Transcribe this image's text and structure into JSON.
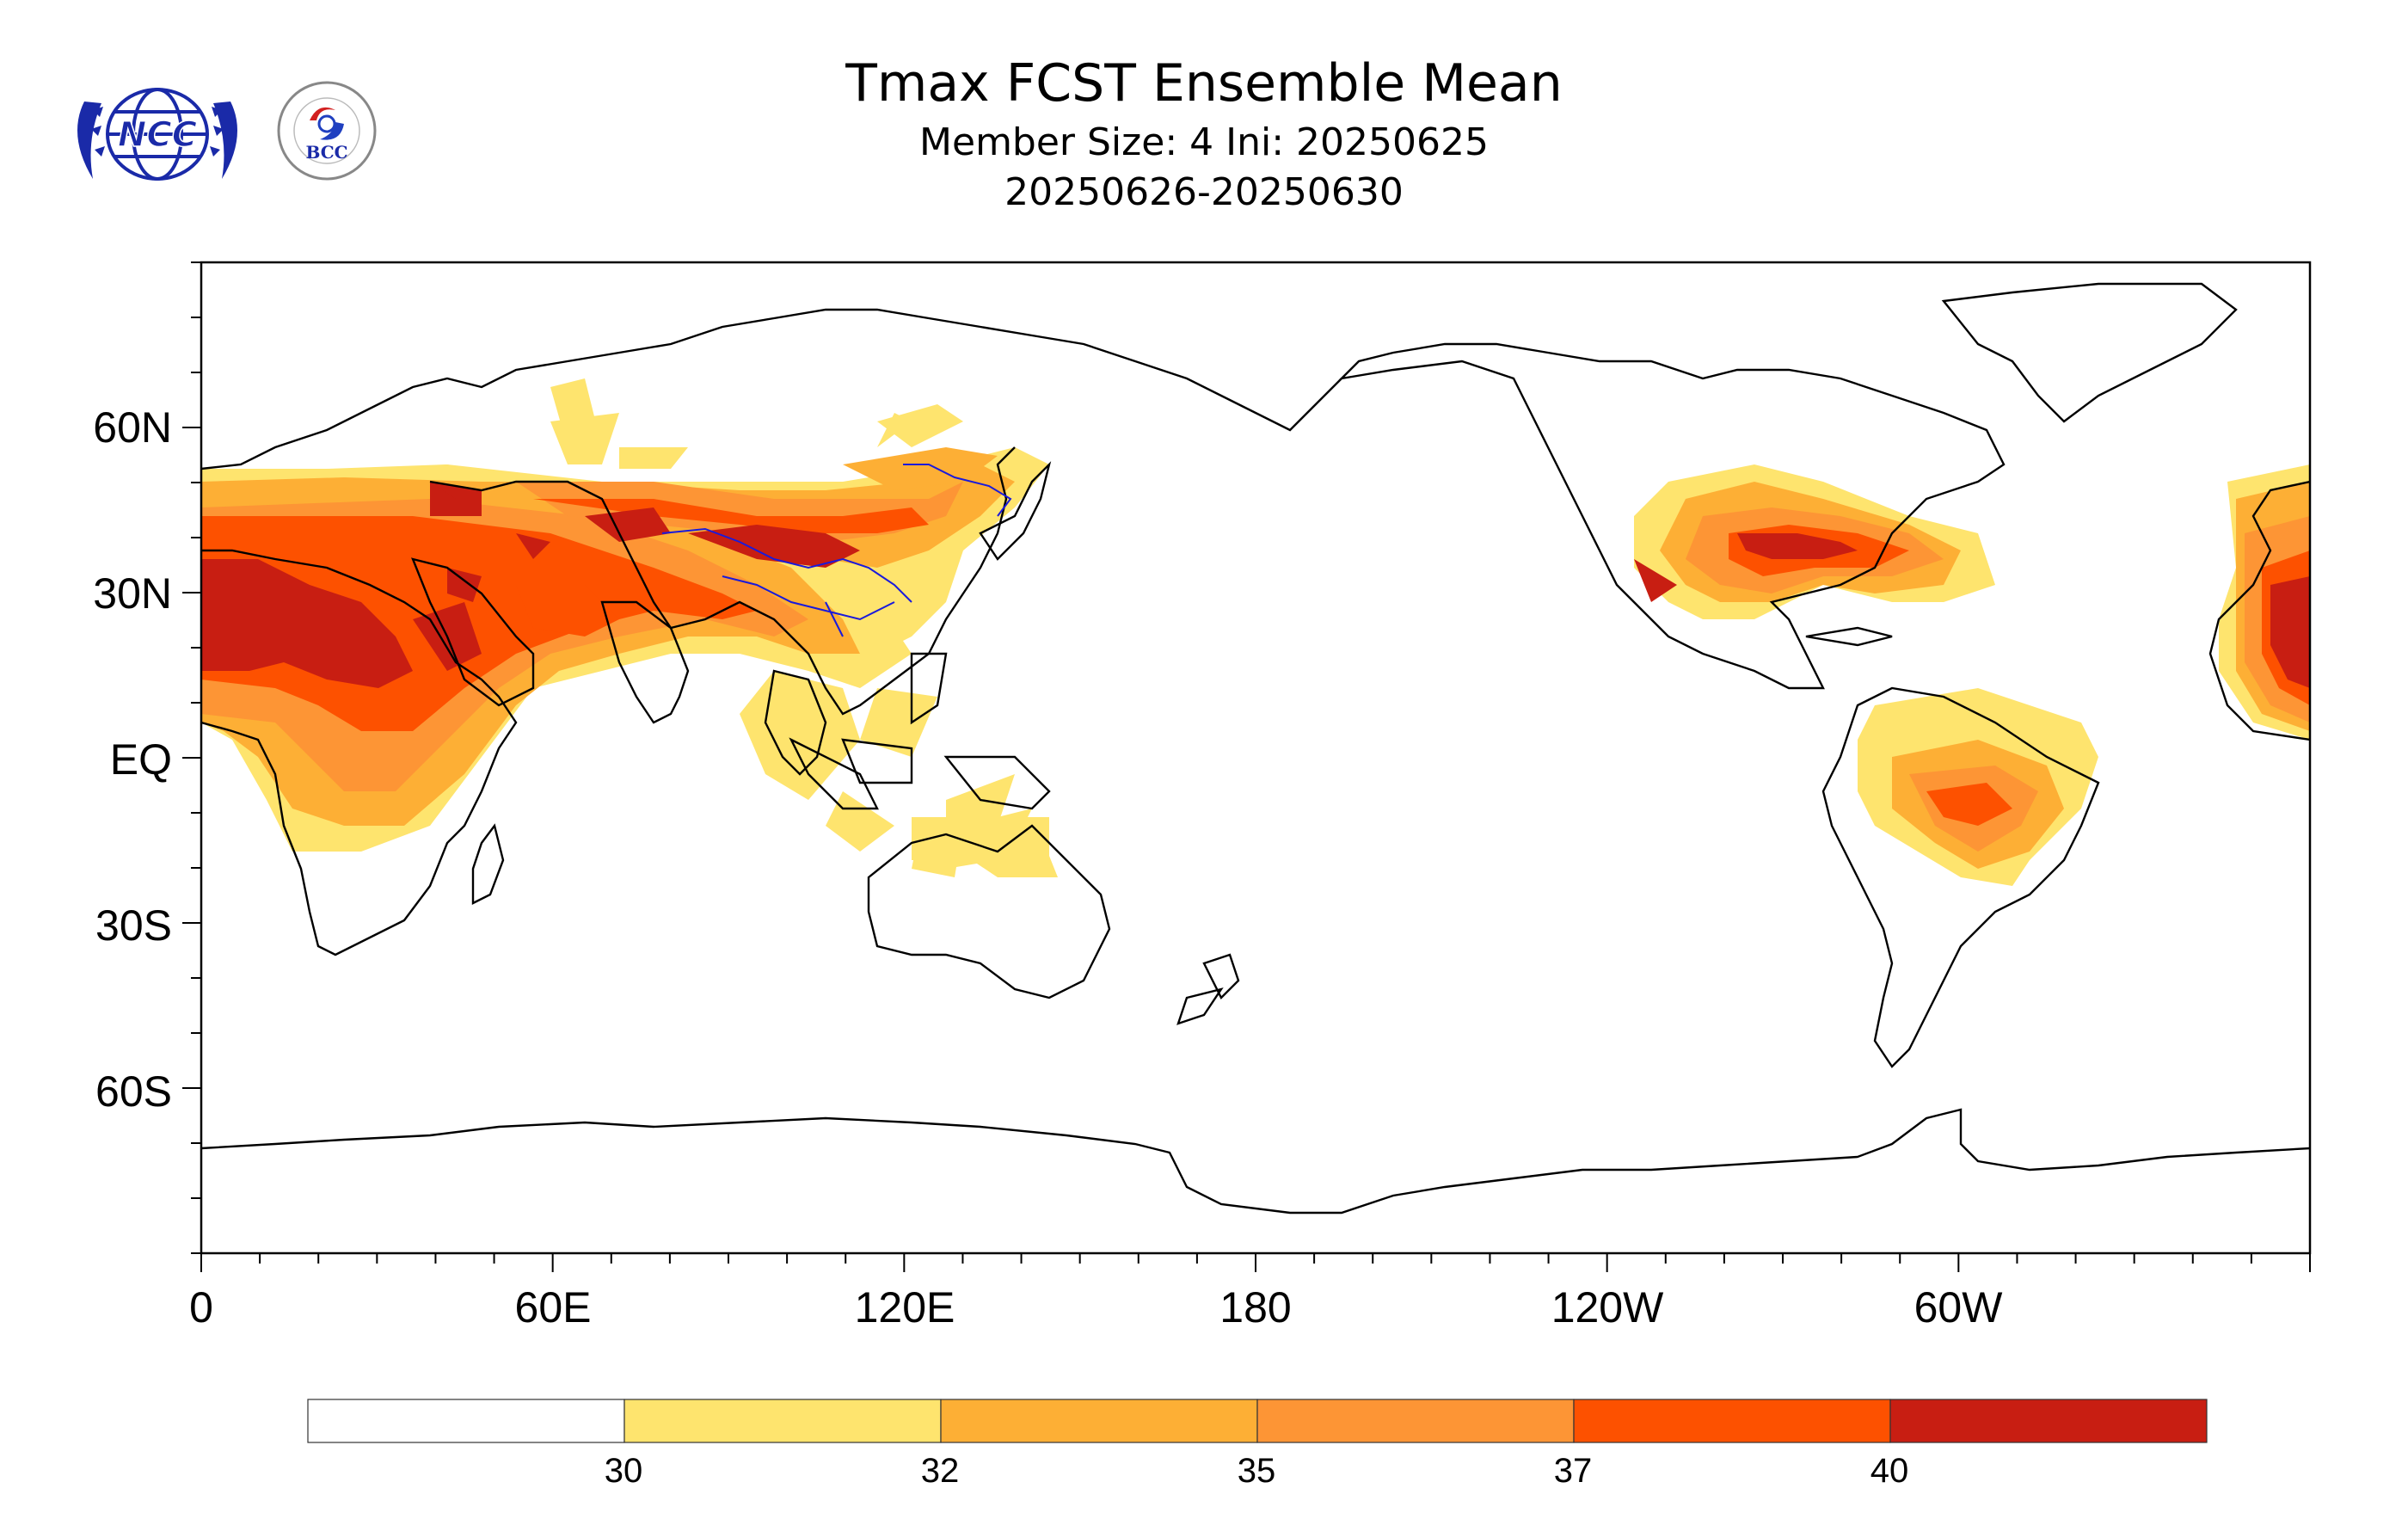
{
  "title": {
    "main": "Tmax FCST Ensemble Mean",
    "line2": "Member Size: 4  Ini: 20250625",
    "line3": "20250626-20250630"
  },
  "logos": {
    "ncc": {
      "icon": "ncc-logo-icon",
      "text": "NCC"
    },
    "bcc": {
      "icon": "bcc-logo-icon",
      "text": "BCC"
    }
  },
  "axes": {
    "lat_ticks": [
      "60N",
      "30N",
      "EQ",
      "30S",
      "60S"
    ],
    "lon_ticks": [
      "0",
      "60E",
      "120E",
      "180",
      "120W",
      "60W"
    ]
  },
  "colorbar": {
    "labels": [
      "30",
      "32",
      "35",
      "37",
      "40"
    ],
    "colors": [
      "#ffffff",
      "#fee46e",
      "#fdaf35",
      "#fd9535",
      "#fd5100",
      "#c81e12"
    ]
  },
  "colors": {
    "coast": "#000000",
    "rivers": "#1a1adb"
  }
}
